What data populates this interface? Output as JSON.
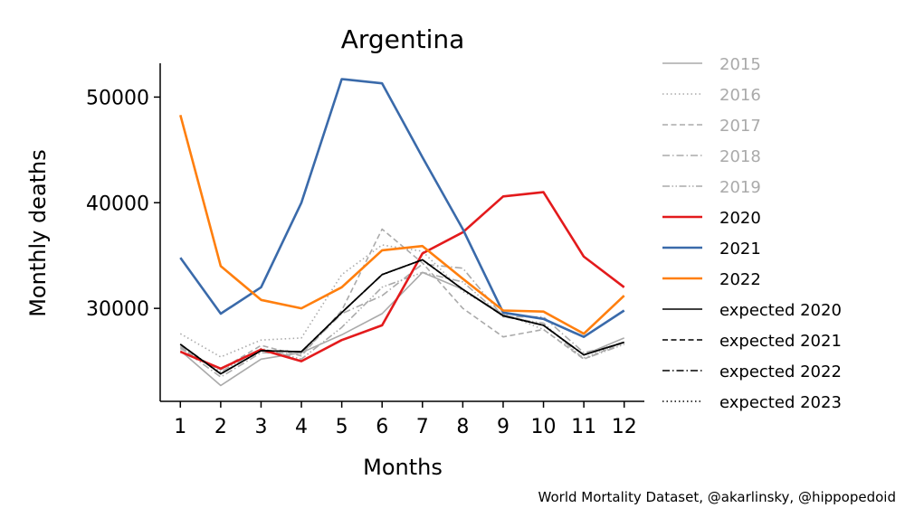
{
  "chart_data": {
    "type": "line",
    "title": "Argentina",
    "xlabel": "Months",
    "ylabel": "Monthly deaths",
    "x": [
      1,
      2,
      3,
      4,
      5,
      6,
      7,
      8,
      9,
      10,
      11,
      12
    ],
    "xlim": [
      0.5,
      12.5
    ],
    "ylim": [
      21200,
      53200
    ],
    "yticks": [
      30000,
      40000,
      50000
    ],
    "grid": false,
    "legend_placement": "right-outside",
    "series": [
      {
        "name": "2015",
        "color": "#aaaaaa",
        "dash": "solid",
        "width": 1,
        "values": [
          26000,
          22700,
          25200,
          25800,
          27500,
          29500,
          33400,
          31800,
          29400,
          28400,
          25600,
          27200
        ]
      },
      {
        "name": "2016",
        "color": "#aaaaaa",
        "dash": "dotted",
        "width": 1,
        "values": [
          27600,
          25400,
          27000,
          27200,
          33200,
          36000,
          35400,
          31600,
          29500,
          28000,
          25300,
          26800
        ]
      },
      {
        "name": "2017",
        "color": "#aaaaaa",
        "dash": "dashed",
        "width": 1,
        "values": [
          26200,
          24200,
          26500,
          25500,
          29800,
          37500,
          34300,
          30000,
          27300,
          28000,
          25200,
          26800
        ]
      },
      {
        "name": "2018",
        "color": "#aaaaaa",
        "dash": "dashdot",
        "width": 1,
        "values": [
          26300,
          23500,
          25800,
          25700,
          29500,
          31200,
          34200,
          33800,
          29200,
          29200,
          25800,
          26700
        ]
      },
      {
        "name": "2019",
        "color": "#aaaaaa",
        "dash": "dashdotdot",
        "width": 1,
        "values": [
          26400,
          24000,
          26200,
          25200,
          28200,
          32000,
          33400,
          32500,
          29200,
          28600,
          25200,
          26600
        ]
      },
      {
        "name": "2020",
        "color": "#e31a1c",
        "dash": "solid",
        "width": 2,
        "values": [
          25900,
          24300,
          26100,
          25000,
          27000,
          28400,
          35200,
          37200,
          40600,
          41000,
          34900,
          32000
        ]
      },
      {
        "name": "2021",
        "color": "#3a6aaa",
        "dash": "solid",
        "width": 2,
        "values": [
          34800,
          29500,
          32000,
          40000,
          51700,
          51300,
          44300,
          37500,
          29600,
          29000,
          27300,
          29800
        ]
      },
      {
        "name": "2022",
        "color": "#ff7f0e",
        "dash": "solid",
        "width": 2,
        "values": [
          48300,
          34000,
          30800,
          30000,
          32000,
          35500,
          35900,
          32800,
          29800,
          29700,
          27600,
          31200
        ]
      },
      {
        "name": "expected 2020",
        "color": "#000000",
        "dash": "solid",
        "width": 1,
        "values": [
          26600,
          23800,
          26000,
          25900,
          29600,
          33200,
          34600,
          31800,
          29300,
          28400,
          25600,
          26800
        ]
      },
      {
        "name": "expected 2021",
        "color": "#000000",
        "dash": "dashed",
        "width": 1,
        "values": [
          26600,
          23800,
          26000,
          25900,
          29600,
          33200,
          34600,
          31800,
          29300,
          28400,
          25600,
          26800
        ]
      },
      {
        "name": "expected 2022",
        "color": "#000000",
        "dash": "dashdot",
        "width": 1,
        "values": [
          26600,
          23800,
          26000,
          25900,
          29600,
          33200,
          34600,
          31800,
          29300,
          28400,
          25600,
          26800
        ]
      },
      {
        "name": "expected 2023",
        "color": "#000000",
        "dash": "dotted",
        "width": 1,
        "values": [
          26600,
          23800,
          26000,
          25900,
          29600,
          33200,
          34600,
          31800,
          29300,
          28400,
          25600,
          26800
        ]
      }
    ],
    "legend_text_colors": {
      "past_years": "#aaaaaa",
      "current": "#000000"
    }
  },
  "credit": "World Mortality Dataset, @akarlinsky, @hippopedoid"
}
